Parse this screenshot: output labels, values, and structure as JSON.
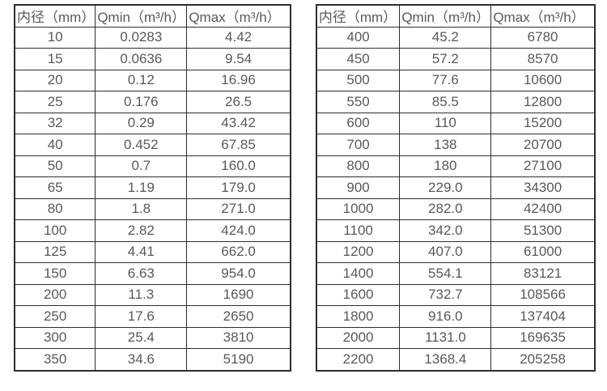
{
  "colors": {
    "background": "#ffffff",
    "border": "#2e2e2e",
    "text": "#595959"
  },
  "chart_data": [
    {
      "type": "table",
      "title": "",
      "columns": [
        "内径（mm）",
        "Qmin（m³/h）",
        "Qmax（m³/h）"
      ],
      "rows": [
        [
          "10",
          "0.0283",
          "4.42"
        ],
        [
          "15",
          "0.0636",
          "9.54"
        ],
        [
          "20",
          "0.12",
          "16.96"
        ],
        [
          "25",
          "0.176",
          "26.5"
        ],
        [
          "32",
          "0.29",
          "43.42"
        ],
        [
          "40",
          "0.452",
          "67.85"
        ],
        [
          "50",
          "0.7",
          "160.0"
        ],
        [
          "65",
          "1.19",
          "179.0"
        ],
        [
          "80",
          "1.8",
          "271.0"
        ],
        [
          "100",
          "2.82",
          "424.0"
        ],
        [
          "125",
          "4.41",
          "662.0"
        ],
        [
          "150",
          "6.63",
          "954.0"
        ],
        [
          "200",
          "11.3",
          "1690"
        ],
        [
          "250",
          "17.6",
          "2650"
        ],
        [
          "300",
          "25.4",
          "3810"
        ],
        [
          "350",
          "34.6",
          "5190"
        ]
      ]
    },
    {
      "type": "table",
      "title": "",
      "columns": [
        "内径（mm）",
        "Qmin（m³/h）",
        "Qmax（m³/h）"
      ],
      "rows": [
        [
          "400",
          "45.2",
          "6780"
        ],
        [
          "450",
          "57.2",
          "8570"
        ],
        [
          "500",
          "77.6",
          "10600"
        ],
        [
          "550",
          "85.5",
          "12800"
        ],
        [
          "600",
          "110",
          "15200"
        ],
        [
          "700",
          "138",
          "20700"
        ],
        [
          "800",
          "180",
          "27100"
        ],
        [
          "900",
          "229.0",
          "34300"
        ],
        [
          "1000",
          "282.0",
          "42400"
        ],
        [
          "1100",
          "342.0",
          "51300"
        ],
        [
          "1200",
          "407.0",
          "61000"
        ],
        [
          "1400",
          "554.1",
          "83121"
        ],
        [
          "1600",
          "732.7",
          "108566"
        ],
        [
          "1800",
          "916.0",
          "137404"
        ],
        [
          "2000",
          "1131.0",
          "169635"
        ],
        [
          "2200",
          "1368.4",
          "205258"
        ]
      ]
    }
  ]
}
